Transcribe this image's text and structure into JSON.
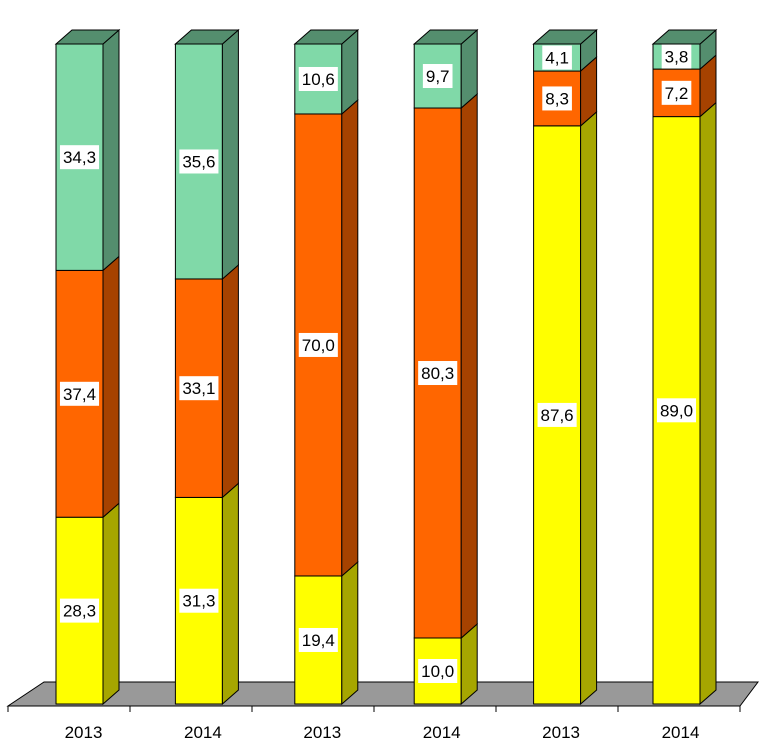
{
  "chart_data": {
    "type": "bar",
    "stacked": true,
    "percent_stacked": true,
    "three_d": true,
    "categories": [
      "2013",
      "2014",
      "2013",
      "2014",
      "2013",
      "2014"
    ],
    "series": [
      {
        "values": [
          28.3,
          31.3,
          19.4,
          10.0,
          87.6,
          89.0
        ],
        "labels": [
          "28,3",
          "31,3",
          "19,4",
          "10,0",
          "87,6",
          "89,0"
        ],
        "color": "#FFFF00",
        "side_color": "#A6A600"
      },
      {
        "values": [
          37.4,
          33.1,
          70.0,
          80.3,
          8.3,
          7.2
        ],
        "labels": [
          "37,4",
          "33,1",
          "70,0",
          "80,3",
          "8,3",
          "7,2"
        ],
        "color": "#FF6600",
        "side_color": "#A64200"
      },
      {
        "values": [
          34.3,
          35.6,
          10.6,
          9.7,
          4.1,
          3.8
        ],
        "labels": [
          "34,3",
          "35,6",
          "10,6",
          "9,7",
          "4,1",
          "3,8"
        ],
        "color": "#80D9A8",
        "side_color": "#548E6E"
      }
    ],
    "ylim": [
      0,
      100
    ],
    "grid": false,
    "legend": "none",
    "floor_color": "#999999"
  }
}
